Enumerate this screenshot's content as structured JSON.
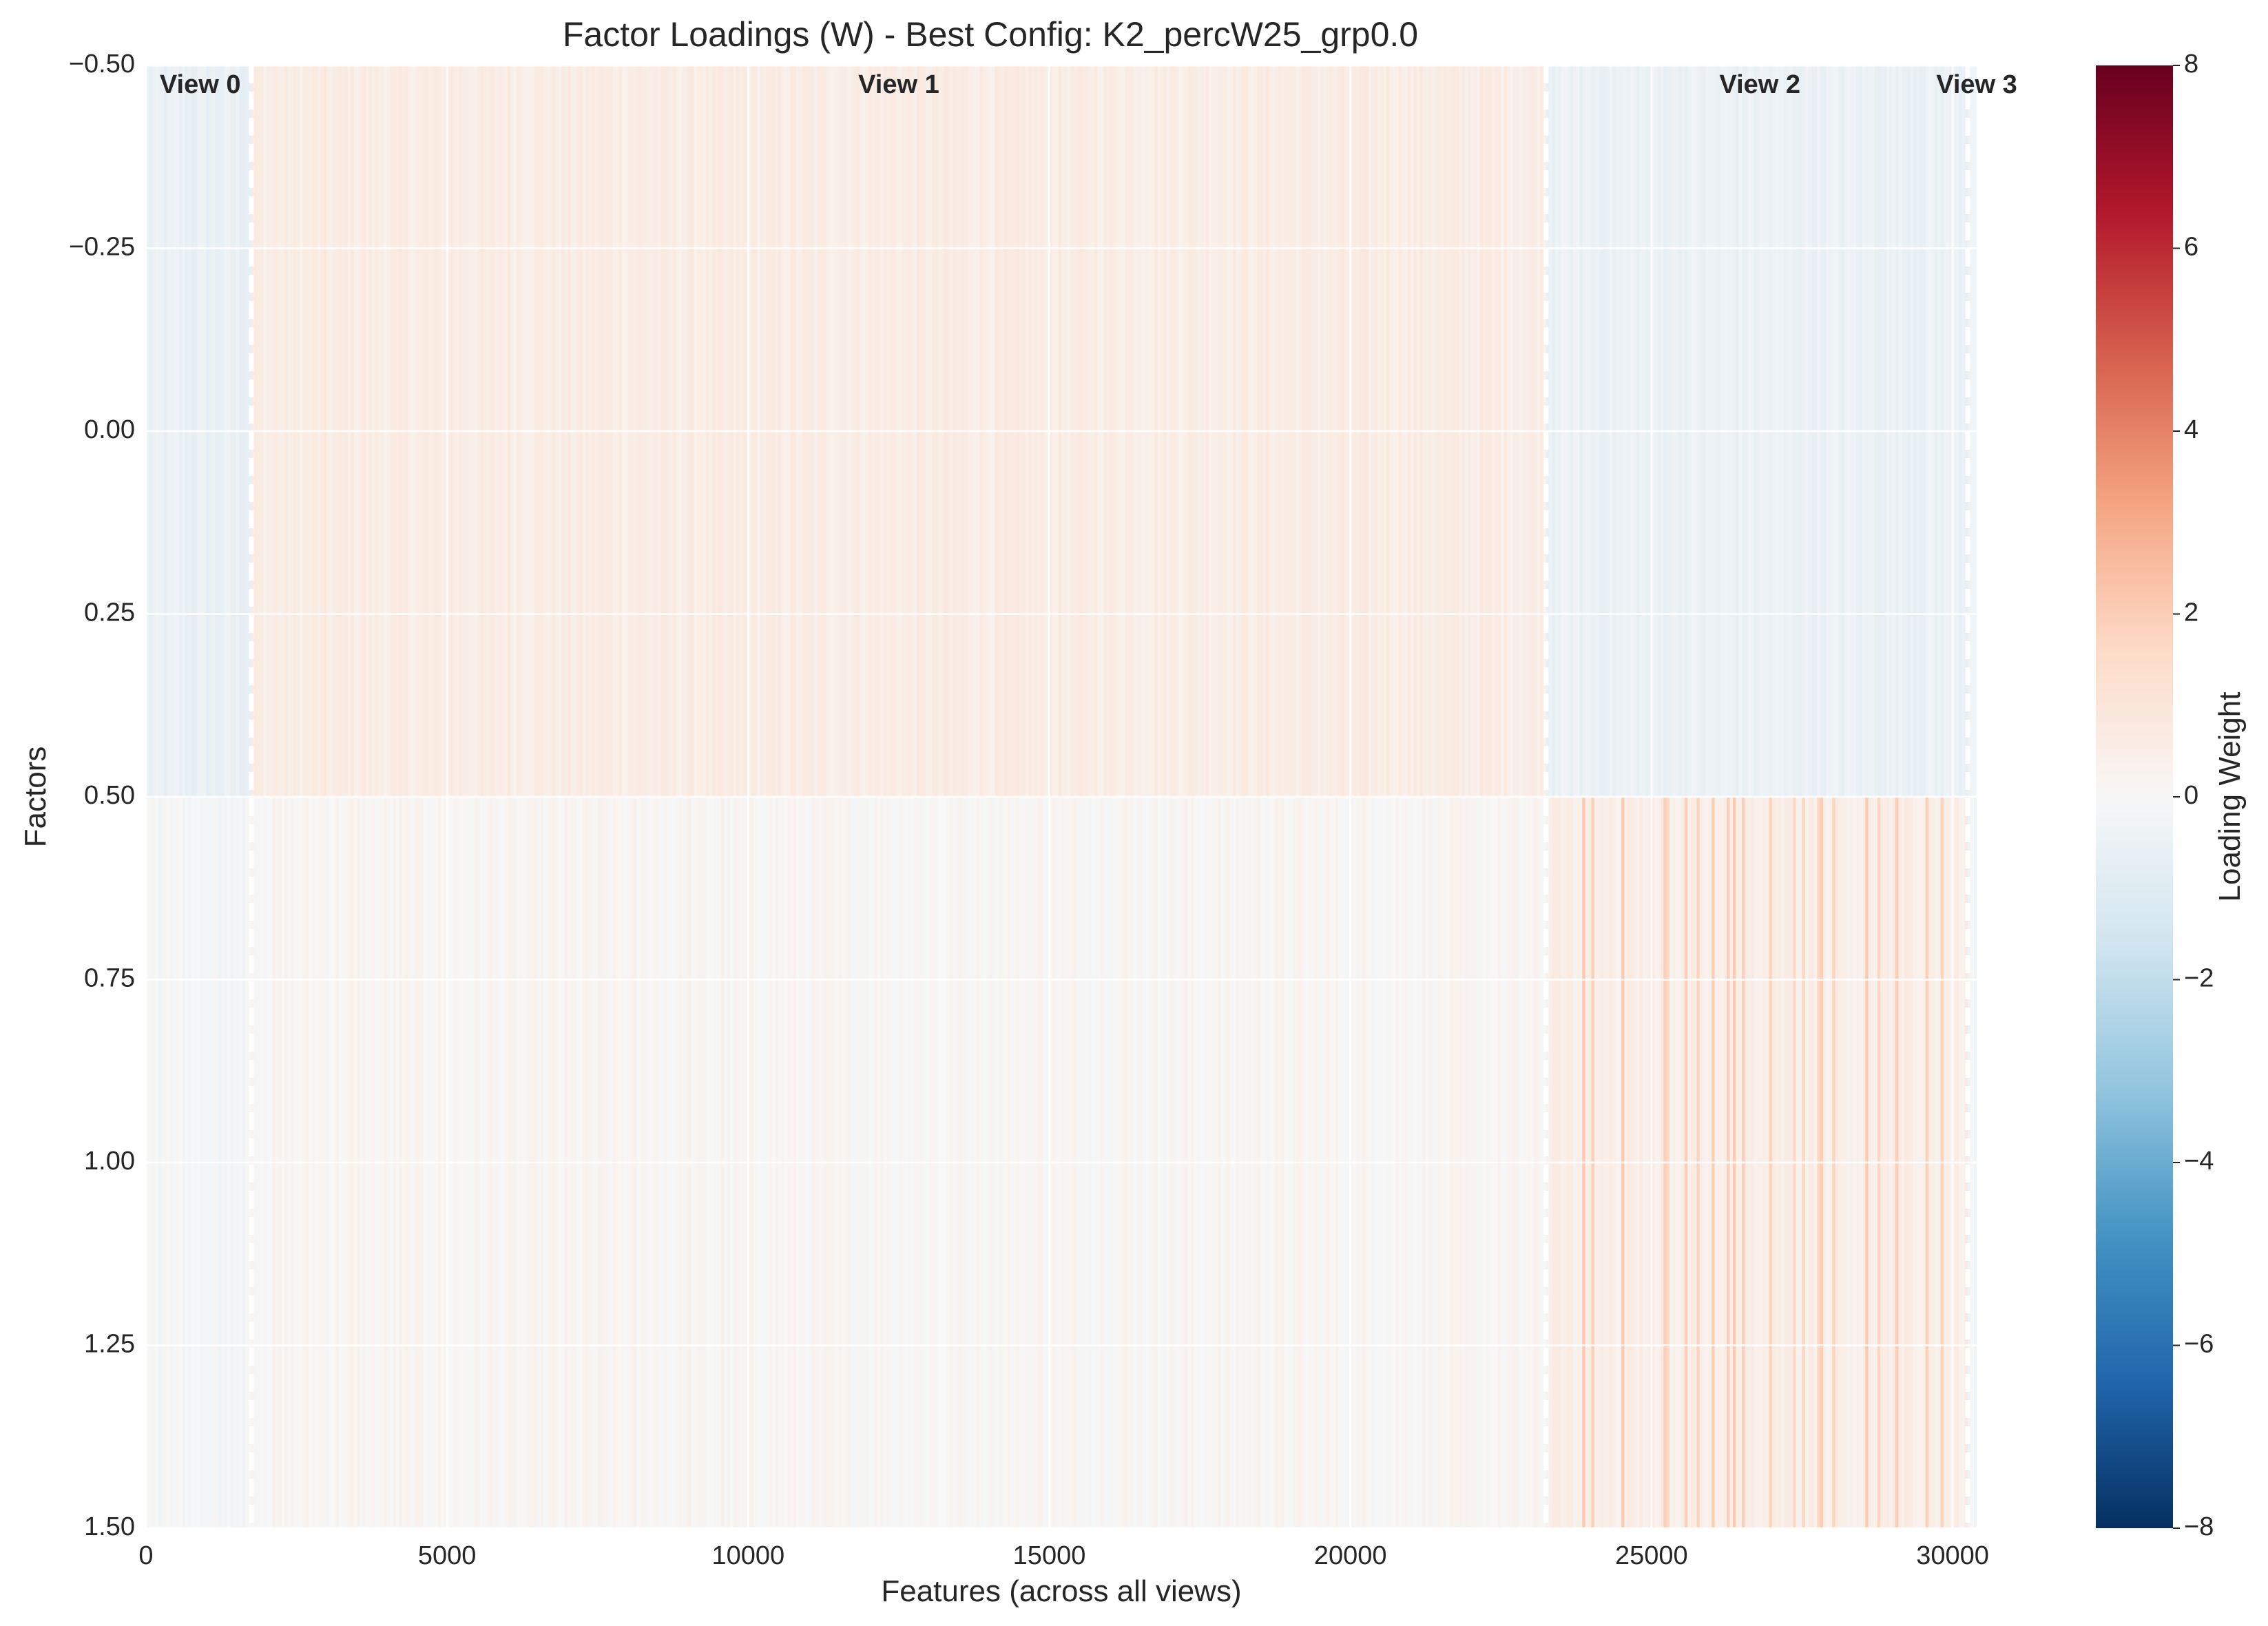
{
  "chart_data": {
    "type": "heatmap",
    "title": "Factor Loadings (W) - Best Config: K2_percW25_grp0.0",
    "xlabel": "Features (across all views)",
    "ylabel": "Factors",
    "colorbar_label": "Loading Weight",
    "colormap": "RdBu_r",
    "xlim": [
      0,
      30400
    ],
    "ylim": [
      1.5,
      -0.5
    ],
    "clim": [
      -8,
      8
    ],
    "x_ticks": [
      0,
      5000,
      10000,
      15000,
      20000,
      25000,
      30000
    ],
    "x_tick_labels": [
      "0",
      "5000",
      "10000",
      "15000",
      "20000",
      "25000",
      "30000"
    ],
    "y_ticks": [
      -0.5,
      -0.25,
      0.0,
      0.25,
      0.5,
      0.75,
      1.0,
      1.25,
      1.5
    ],
    "y_tick_labels": [
      "−0.50",
      "−0.25",
      "0.00",
      "0.25",
      "0.50",
      "0.75",
      "1.00",
      "1.25",
      "1.50"
    ],
    "colorbar_ticks": [
      8,
      6,
      4,
      2,
      0,
      -2,
      -4,
      -6,
      -8
    ],
    "colorbar_tick_labels": [
      "8",
      "6",
      "4",
      "2",
      "0",
      "−2",
      "−4",
      "−6",
      "−8"
    ],
    "grid": true,
    "factors": [
      0,
      1
    ],
    "views": [
      {
        "label": "View 0",
        "start": 0,
        "end": 1750,
        "mean_loading": [
          -0.6,
          -0.1
        ]
      },
      {
        "label": "View 1",
        "start": 1750,
        "end": 23250,
        "mean_loading": [
          0.6,
          0.1
        ]
      },
      {
        "label": "View 2",
        "start": 23250,
        "end": 30250,
        "mean_loading": [
          -0.5,
          0.5
        ]
      },
      {
        "label": "View 3",
        "start": 30250,
        "end": 30400,
        "mean_loading": [
          -0.4,
          -0.1
        ]
      }
    ],
    "view_boundaries": [
      1750,
      23250,
      30250
    ],
    "view_label_positions": [
      900,
      12500,
      26800,
      30400
    ],
    "colors": {
      "min": "#053061",
      "neutral": "#f7f7f7",
      "max": "#67001f",
      "grid": "#ffffff",
      "text": "#262626"
    }
  }
}
